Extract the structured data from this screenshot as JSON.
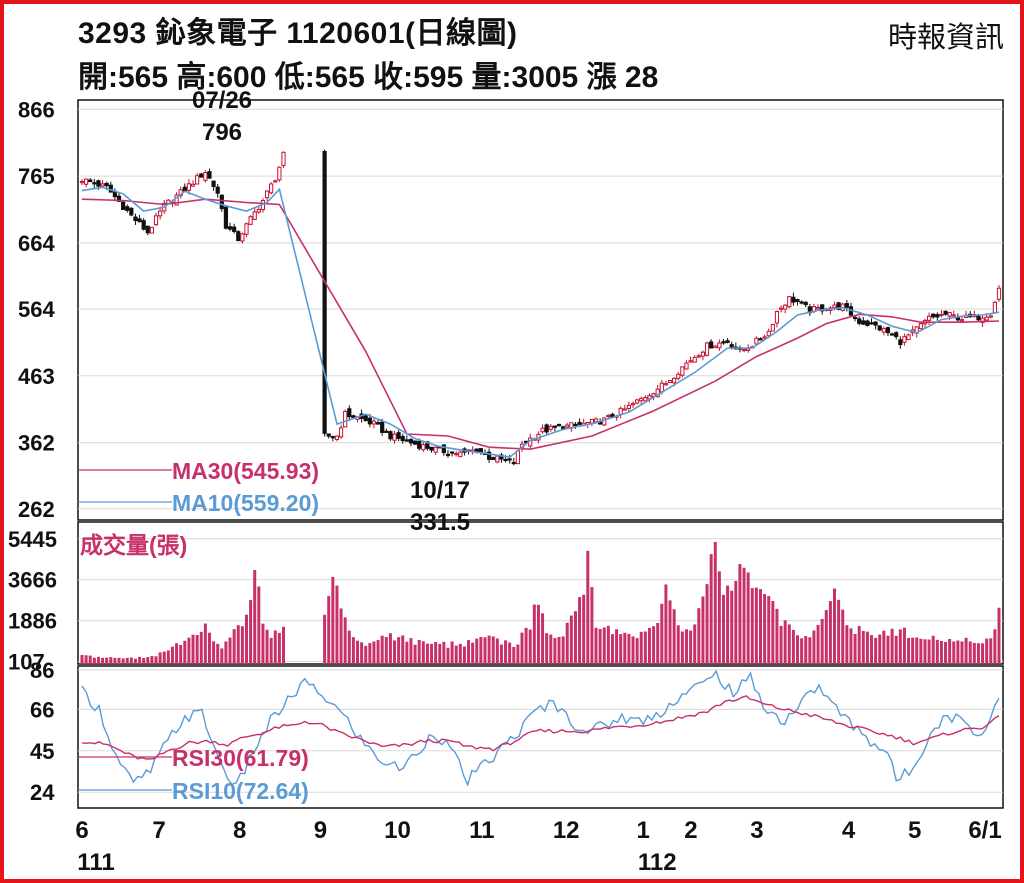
{
  "header": {
    "title": "3293  鈊象電子 1120601(日線圖)",
    "ohlc": "開:565 高:600 低:565 收:595 量:3005 漲 28",
    "source": "時報資訊"
  },
  "colors": {
    "frame": "#e8141b",
    "up": "#c8102e",
    "down": "#111111",
    "ma30": "#c8306a",
    "ma10": "#5b9bd5",
    "volume": "#c8306a",
    "rsi30": "#c8306a",
    "rsi10": "#5b9bd5",
    "grid": "#d9d9d9"
  },
  "chart_data": [
    {
      "type": "line",
      "subtype": "candlestick",
      "y_ticks": [
        "866",
        "765",
        "664",
        "564",
        "463",
        "362",
        "262"
      ],
      "ylim": [
        245,
        880
      ],
      "annotations": [
        {
          "date": "07/26",
          "value": "796"
        },
        {
          "date": "10/17",
          "value": "331.5"
        }
      ],
      "series": [
        {
          "name": "MA30(545.93)",
          "key": "ma30",
          "last": 545.93
        },
        {
          "name": "MA10(559.20)",
          "key": "ma10",
          "last": 559.2
        }
      ],
      "price_path": [
        [
          0,
          760
        ],
        [
          6,
          748
        ],
        [
          12,
          705
        ],
        [
          16,
          680
        ],
        [
          20,
          720
        ],
        [
          24,
          740
        ],
        [
          30,
          772
        ],
        [
          33,
          740
        ],
        [
          35,
          690
        ],
        [
          38,
          670
        ],
        [
          41,
          700
        ],
        [
          44,
          728
        ],
        [
          47,
          762
        ],
        [
          49,
          796
        ],
        [
          50,
          372
        ],
        [
          53,
          372
        ],
        [
          55,
          405
        ],
        [
          58,
          400
        ],
        [
          62,
          390
        ],
        [
          66,
          372
        ],
        [
          72,
          360
        ],
        [
          78,
          350
        ],
        [
          84,
          345
        ],
        [
          87,
          352
        ],
        [
          90,
          340
        ],
        [
          93,
          336
        ],
        [
          96,
          332
        ],
        [
          98,
          360
        ],
        [
          103,
          380
        ],
        [
          108,
          386
        ],
        [
          113,
          390
        ],
        [
          118,
          396
        ],
        [
          123,
          412
        ],
        [
          128,
          432
        ],
        [
          133,
          452
        ],
        [
          138,
          482
        ],
        [
          143,
          508
        ],
        [
          148,
          515
        ],
        [
          151,
          500
        ],
        [
          154,
          510
        ],
        [
          158,
          530
        ],
        [
          160,
          560
        ],
        [
          163,
          580
        ],
        [
          165,
          575
        ],
        [
          168,
          562
        ],
        [
          172,
          566
        ],
        [
          176,
          568
        ],
        [
          180,
          545
        ],
        [
          184,
          538
        ],
        [
          188,
          525
        ],
        [
          190,
          515
        ],
        [
          193,
          528
        ],
        [
          197,
          550
        ],
        [
          201,
          556
        ],
        [
          205,
          550
        ],
        [
          209,
          552
        ],
        [
          212,
          558
        ],
        [
          214,
          595
        ]
      ],
      "ma10_path": [
        [
          0,
          743
        ],
        [
          5,
          748
        ],
        [
          10,
          738
        ],
        [
          15,
          712
        ],
        [
          20,
          718
        ],
        [
          25,
          742
        ],
        [
          30,
          730
        ],
        [
          35,
          720
        ],
        [
          40,
          712
        ],
        [
          45,
          725
        ],
        [
          48,
          745
        ],
        [
          53,
          390
        ],
        [
          60,
          405
        ],
        [
          66,
          390
        ],
        [
          72,
          368
        ],
        [
          78,
          356
        ],
        [
          84,
          350
        ],
        [
          90,
          345
        ],
        [
          95,
          340
        ],
        [
          100,
          365
        ],
        [
          108,
          382
        ],
        [
          116,
          392
        ],
        [
          124,
          408
        ],
        [
          132,
          438
        ],
        [
          140,
          468
        ],
        [
          148,
          505
        ],
        [
          154,
          505
        ],
        [
          160,
          530
        ],
        [
          165,
          555
        ],
        [
          170,
          562
        ],
        [
          176,
          566
        ],
        [
          182,
          555
        ],
        [
          188,
          538
        ],
        [
          194,
          528
        ],
        [
          200,
          548
        ],
        [
          206,
          554
        ],
        [
          210,
          555
        ],
        [
          214,
          559.2
        ]
      ],
      "ma30_path": [
        [
          0,
          730
        ],
        [
          10,
          728
        ],
        [
          20,
          722
        ],
        [
          30,
          730
        ],
        [
          40,
          725
        ],
        [
          48,
          722
        ],
        [
          60,
          500
        ],
        [
          70,
          375
        ],
        [
          80,
          372
        ],
        [
          90,
          355
        ],
        [
          100,
          352
        ],
        [
          115,
          372
        ],
        [
          130,
          410
        ],
        [
          145,
          455
        ],
        [
          155,
          492
        ],
        [
          165,
          520
        ],
        [
          172,
          542
        ],
        [
          180,
          556
        ],
        [
          188,
          552
        ],
        [
          195,
          544
        ],
        [
          205,
          544
        ],
        [
          214,
          545.93
        ]
      ]
    },
    {
      "type": "bar",
      "title": "成交量(張)",
      "y_ticks": [
        "5445",
        "3666",
        "1886",
        "107"
      ],
      "ylim": [
        0,
        6000
      ],
      "volume_path": [
        [
          0,
          400
        ],
        [
          10,
          250
        ],
        [
          18,
          380
        ],
        [
          24,
          1000
        ],
        [
          30,
          1700
        ],
        [
          34,
          900
        ],
        [
          36,
          1300
        ],
        [
          38,
          1700
        ],
        [
          40,
          2600
        ],
        [
          42,
          4800
        ],
        [
          44,
          2000
        ],
        [
          46,
          1100
        ],
        [
          50,
          2300
        ],
        [
          52,
          4100
        ],
        [
          54,
          2600
        ],
        [
          56,
          1400
        ],
        [
          60,
          1000
        ],
        [
          66,
          1300
        ],
        [
          72,
          1100
        ],
        [
          78,
          900
        ],
        [
          84,
          1000
        ],
        [
          90,
          1200
        ],
        [
          96,
          900
        ],
        [
          100,
          1800
        ],
        [
          102,
          3200
        ],
        [
          104,
          1500
        ],
        [
          108,
          1300
        ],
        [
          112,
          3000
        ],
        [
          114,
          4700
        ],
        [
          116,
          1900
        ],
        [
          120,
          1500
        ],
        [
          126,
          1300
        ],
        [
          131,
          2300
        ],
        [
          133,
          3300
        ],
        [
          136,
          1800
        ],
        [
          140,
          1800
        ],
        [
          143,
          3700
        ],
        [
          145,
          5900
        ],
        [
          147,
          3400
        ],
        [
          150,
          4400
        ],
        [
          153,
          5000
        ],
        [
          155,
          3700
        ],
        [
          158,
          3500
        ],
        [
          160,
          2300
        ],
        [
          164,
          1600
        ],
        [
          168,
          1300
        ],
        [
          172,
          2600
        ],
        [
          174,
          3200
        ],
        [
          178,
          1800
        ],
        [
          184,
          1400
        ],
        [
          190,
          1600
        ],
        [
          195,
          1300
        ],
        [
          200,
          1100
        ],
        [
          205,
          1200
        ],
        [
          210,
          1000
        ],
        [
          213,
          1700
        ],
        [
          214,
          3005
        ]
      ]
    },
    {
      "type": "line",
      "y_ticks": [
        "86",
        "66",
        "45",
        "24"
      ],
      "ylim": [
        16,
        88
      ],
      "series": [
        {
          "name": "RSI30(61.79)",
          "key": "rsi30",
          "last": 61.79
        },
        {
          "name": "RSI10(72.64)",
          "key": "rsi10",
          "last": 72.64
        }
      ],
      "rsi30_path": [
        [
          0,
          50
        ],
        [
          6,
          48
        ],
        [
          12,
          42
        ],
        [
          16,
          40
        ],
        [
          20,
          45
        ],
        [
          25,
          49
        ],
        [
          30,
          50
        ],
        [
          34,
          48
        ],
        [
          38,
          52
        ],
        [
          42,
          54
        ],
        [
          46,
          57
        ],
        [
          50,
          58
        ],
        [
          52,
          60
        ],
        [
          56,
          58
        ],
        [
          60,
          54
        ],
        [
          66,
          50
        ],
        [
          70,
          47
        ],
        [
          76,
          48
        ],
        [
          80,
          50
        ],
        [
          86,
          50
        ],
        [
          90,
          47
        ],
        [
          96,
          46
        ],
        [
          100,
          49
        ],
        [
          106,
          55
        ],
        [
          112,
          55
        ],
        [
          118,
          55
        ],
        [
          124,
          57
        ],
        [
          130,
          58
        ],
        [
          136,
          60
        ],
        [
          142,
          63
        ],
        [
          146,
          65
        ],
        [
          150,
          70
        ],
        [
          155,
          72
        ],
        [
          160,
          68
        ],
        [
          166,
          65
        ],
        [
          172,
          62
        ],
        [
          178,
          58
        ],
        [
          184,
          55
        ],
        [
          190,
          52
        ],
        [
          194,
          49
        ],
        [
          198,
          51
        ],
        [
          204,
          55
        ],
        [
          210,
          57
        ],
        [
          214,
          61.79
        ]
      ],
      "rsi10_path": [
        [
          0,
          75
        ],
        [
          4,
          66
        ],
        [
          8,
          42
        ],
        [
          12,
          28
        ],
        [
          16,
          35
        ],
        [
          20,
          50
        ],
        [
          24,
          62
        ],
        [
          28,
          64
        ],
        [
          32,
          40
        ],
        [
          36,
          26
        ],
        [
          40,
          45
        ],
        [
          44,
          60
        ],
        [
          48,
          70
        ],
        [
          52,
          80
        ],
        [
          54,
          76
        ],
        [
          58,
          70
        ],
        [
          62,
          60
        ],
        [
          66,
          48
        ],
        [
          70,
          40
        ],
        [
          74,
          36
        ],
        [
          78,
          43
        ],
        [
          82,
          55
        ],
        [
          86,
          46
        ],
        [
          90,
          30
        ],
        [
          94,
          38
        ],
        [
          98,
          46
        ],
        [
          102,
          55
        ],
        [
          106,
          65
        ],
        [
          110,
          70
        ],
        [
          114,
          60
        ],
        [
          118,
          55
        ],
        [
          122,
          58
        ],
        [
          126,
          62
        ],
        [
          130,
          60
        ],
        [
          134,
          63
        ],
        [
          138,
          70
        ],
        [
          142,
          76
        ],
        [
          146,
          80
        ],
        [
          148,
          84
        ],
        [
          152,
          74
        ],
        [
          156,
          82
        ],
        [
          160,
          65
        ],
        [
          164,
          60
        ],
        [
          168,
          70
        ],
        [
          172,
          78
        ],
        [
          176,
          66
        ],
        [
          180,
          58
        ],
        [
          184,
          50
        ],
        [
          188,
          44
        ],
        [
          190,
          30
        ],
        [
          194,
          36
        ],
        [
          198,
          55
        ],
        [
          202,
          63
        ],
        [
          206,
          60
        ],
        [
          210,
          52
        ],
        [
          214,
          72.64
        ]
      ]
    }
  ],
  "x_axis": {
    "months": [
      {
        "label": "6",
        "i": 0
      },
      {
        "label": "7",
        "i": 21
      },
      {
        "label": "8",
        "i": 43
      },
      {
        "label": "9",
        "i": 65
      },
      {
        "label": "10",
        "i": 86
      },
      {
        "label": "11",
        "i": 109
      },
      {
        "label": "12",
        "i": 132
      },
      {
        "label": "1",
        "i": 153
      },
      {
        "label": "2",
        "i": 166
      },
      {
        "label": "3",
        "i": 184
      },
      {
        "label": "4",
        "i": 209
      },
      {
        "label": "5",
        "i": 227
      },
      {
        "label": "6/1",
        "i": 250
      }
    ],
    "years": [
      {
        "label": "111",
        "i": 0
      },
      {
        "label": "112",
        "i": 153
      }
    ]
  }
}
